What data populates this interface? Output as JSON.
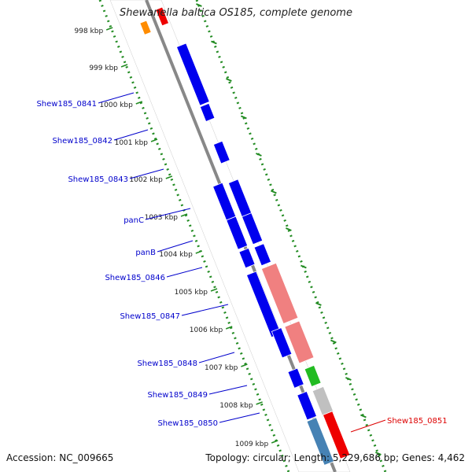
{
  "title": "Shewanella baltica OS185, complete genome",
  "accession": "Accession: NC_009665",
  "summary": "Topology: circular; Length: 5,229,686 bp; Genes: 4,462",
  "kbp_labels": [
    "998 kbp",
    "999 kbp",
    "1000 kbp",
    "1001 kbp",
    "1002 kbp",
    "1003 kbp",
    "1004 kbp",
    "1005 kbp",
    "1006 kbp",
    "1007 kbp",
    "1008 kbp",
    "1009 kbp"
  ],
  "gene_labels": [
    "Shew185_0841",
    "Shew185_0842",
    "Shew185_0843",
    "panC",
    "panB",
    "Shew185_0846",
    "Shew185_0847",
    "Shew185_0848",
    "Shew185_0849",
    "Shew185_0850"
  ],
  "right_label": "Shew185_0851",
  "colors": {
    "cds": "#0000ee",
    "cds_pink": "#f08080",
    "cds_red": "#ee0000",
    "cds_orange": "#ff8c00",
    "cds_green": "#22bb22",
    "cds_gray": "#c0c0c0",
    "cds_steel": "#4682b4",
    "backbone": "#888888",
    "ruler": "#228b22",
    "label": "#0000cc",
    "label_red": "#dd0000"
  }
}
